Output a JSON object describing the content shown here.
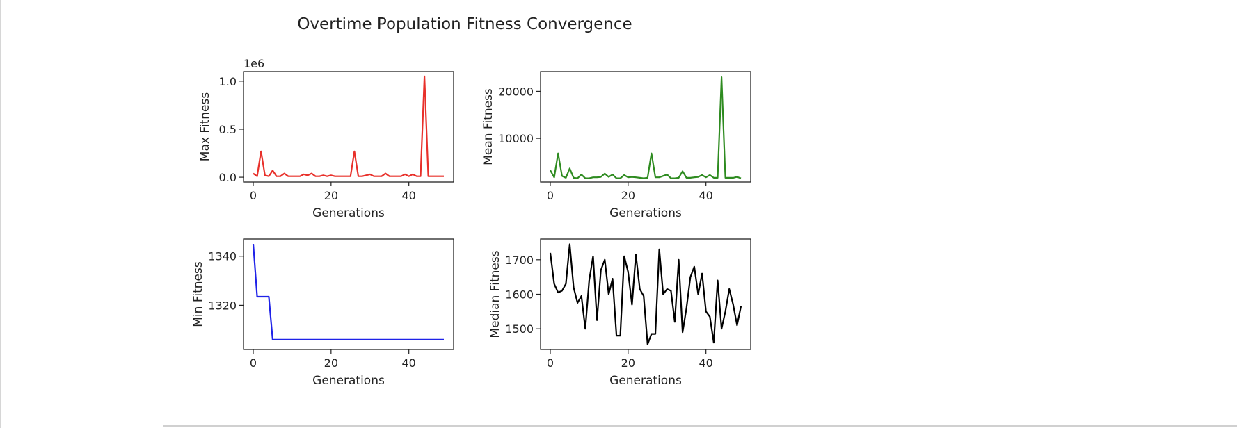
{
  "figure": {
    "title": "Overtime Population Fitness Convergence"
  },
  "chart_data": [
    {
      "type": "line",
      "color": "#e8302a",
      "xlabel": "Generations",
      "ylabel": "Max Fitness",
      "offset_text": "1e6",
      "xlim": [
        -2.5,
        51.5
      ],
      "ylim": [
        -0.05,
        1.1
      ],
      "xticks": [
        0,
        20,
        40
      ],
      "xtick_labels": [
        "0",
        "20",
        "40"
      ],
      "yticks": [
        0.0,
        0.5,
        1.0
      ],
      "ytick_labels": [
        "0.0",
        "0.5",
        "1.0"
      ],
      "x": [
        0,
        1,
        2,
        3,
        4,
        5,
        6,
        7,
        8,
        9,
        10,
        11,
        12,
        13,
        14,
        15,
        16,
        17,
        18,
        19,
        20,
        21,
        22,
        23,
        24,
        25,
        26,
        27,
        28,
        29,
        30,
        31,
        32,
        33,
        34,
        35,
        36,
        37,
        38,
        39,
        40,
        41,
        42,
        43,
        44,
        45,
        46,
        47,
        48,
        49
      ],
      "y": [
        0.04,
        0.01,
        0.27,
        0.02,
        0.01,
        0.07,
        0.01,
        0.01,
        0.04,
        0.01,
        0.01,
        0.01,
        0.01,
        0.03,
        0.02,
        0.04,
        0.01,
        0.01,
        0.02,
        0.01,
        0.02,
        0.01,
        0.01,
        0.01,
        0.01,
        0.01,
        0.27,
        0.01,
        0.01,
        0.02,
        0.03,
        0.01,
        0.01,
        0.01,
        0.04,
        0.01,
        0.01,
        0.01,
        0.01,
        0.03,
        0.01,
        0.03,
        0.01,
        0.01,
        1.05,
        0.01,
        0.01,
        0.01,
        0.01,
        0.01
      ]
    },
    {
      "type": "line",
      "color": "#2e8b20",
      "xlabel": "Generations",
      "ylabel": "Mean Fitness",
      "xlim": [
        -2.5,
        51.5
      ],
      "ylim": [
        700,
        24200
      ],
      "xticks": [
        0,
        20,
        40
      ],
      "xtick_labels": [
        "0",
        "20",
        "40"
      ],
      "yticks": [
        10000,
        20000
      ],
      "ytick_labels": [
        "10000",
        "20000"
      ],
      "x": [
        0,
        1,
        2,
        3,
        4,
        5,
        6,
        7,
        8,
        9,
        10,
        11,
        12,
        13,
        14,
        15,
        16,
        17,
        18,
        19,
        20,
        21,
        22,
        23,
        24,
        25,
        26,
        27,
        28,
        29,
        30,
        31,
        32,
        33,
        34,
        35,
        36,
        37,
        38,
        39,
        40,
        41,
        42,
        43,
        44,
        45,
        46,
        47,
        48,
        49
      ],
      "y": [
        3200,
        1700,
        6800,
        2000,
        1600,
        3600,
        1600,
        1500,
        2300,
        1500,
        1500,
        1700,
        1700,
        1800,
        2500,
        1800,
        2300,
        1500,
        1500,
        2200,
        1700,
        1800,
        1700,
        1600,
        1500,
        1600,
        6800,
        1700,
        1700,
        2000,
        2300,
        1500,
        1500,
        1600,
        3000,
        1600,
        1600,
        1700,
        1800,
        2200,
        1700,
        2200,
        1600,
        1600,
        23000,
        1600,
        1600,
        1600,
        1800,
        1500
      ]
    },
    {
      "type": "line",
      "color": "#1f22e8",
      "xlabel": "Generations",
      "ylabel": "Min Fitness",
      "xlim": [
        -2.5,
        51.5
      ],
      "ylim": [
        1302,
        1347
      ],
      "xticks": [
        0,
        20,
        40
      ],
      "xtick_labels": [
        "0",
        "20",
        "40"
      ],
      "yticks": [
        1320,
        1340
      ],
      "ytick_labels": [
        "1320",
        "1340"
      ],
      "x": [
        0,
        1,
        2,
        3,
        4,
        5,
        6,
        7,
        8,
        9,
        10,
        11,
        12,
        13,
        14,
        15,
        16,
        17,
        18,
        19,
        20,
        21,
        22,
        23,
        24,
        25,
        26,
        27,
        28,
        29,
        30,
        31,
        32,
        33,
        34,
        35,
        36,
        37,
        38,
        39,
        40,
        41,
        42,
        43,
        44,
        45,
        46,
        47,
        48,
        49
      ],
      "y": [
        1345,
        1323.5,
        1323.5,
        1323.5,
        1323.5,
        1306,
        1306,
        1306,
        1306,
        1306,
        1306,
        1306,
        1306,
        1306,
        1306,
        1306,
        1306,
        1306,
        1306,
        1306,
        1306,
        1306,
        1306,
        1306,
        1306,
        1306,
        1306,
        1306,
        1306,
        1306,
        1306,
        1306,
        1306,
        1306,
        1306,
        1306,
        1306,
        1306,
        1306,
        1306,
        1306,
        1306,
        1306,
        1306,
        1306,
        1306,
        1306,
        1306,
        1306,
        1306
      ]
    },
    {
      "type": "line",
      "color": "#000000",
      "xlabel": "Generations",
      "ylabel": "Median Fitness",
      "xlim": [
        -2.5,
        51.5
      ],
      "ylim": [
        1440,
        1760
      ],
      "xticks": [
        0,
        20,
        40
      ],
      "xtick_labels": [
        "0",
        "20",
        "40"
      ],
      "yticks": [
        1500,
        1600,
        1700
      ],
      "ytick_labels": [
        "1500",
        "1600",
        "1700"
      ],
      "x": [
        0,
        1,
        2,
        3,
        4,
        5,
        6,
        7,
        8,
        9,
        10,
        11,
        12,
        13,
        14,
        15,
        16,
        17,
        18,
        19,
        20,
        21,
        22,
        23,
        24,
        25,
        26,
        27,
        28,
        29,
        30,
        31,
        32,
        33,
        34,
        35,
        36,
        37,
        38,
        39,
        40,
        41,
        42,
        43,
        44,
        45,
        46,
        47,
        48,
        49
      ],
      "y": [
        1720,
        1630,
        1605,
        1610,
        1630,
        1745,
        1620,
        1575,
        1595,
        1500,
        1640,
        1710,
        1525,
        1670,
        1700,
        1600,
        1645,
        1480,
        1480,
        1710,
        1665,
        1570,
        1715,
        1615,
        1595,
        1455,
        1485,
        1485,
        1730,
        1600,
        1615,
        1610,
        1520,
        1700,
        1490,
        1560,
        1650,
        1680,
        1600,
        1660,
        1550,
        1535,
        1460,
        1640,
        1500,
        1550,
        1615,
        1570,
        1510,
        1565
      ]
    }
  ]
}
